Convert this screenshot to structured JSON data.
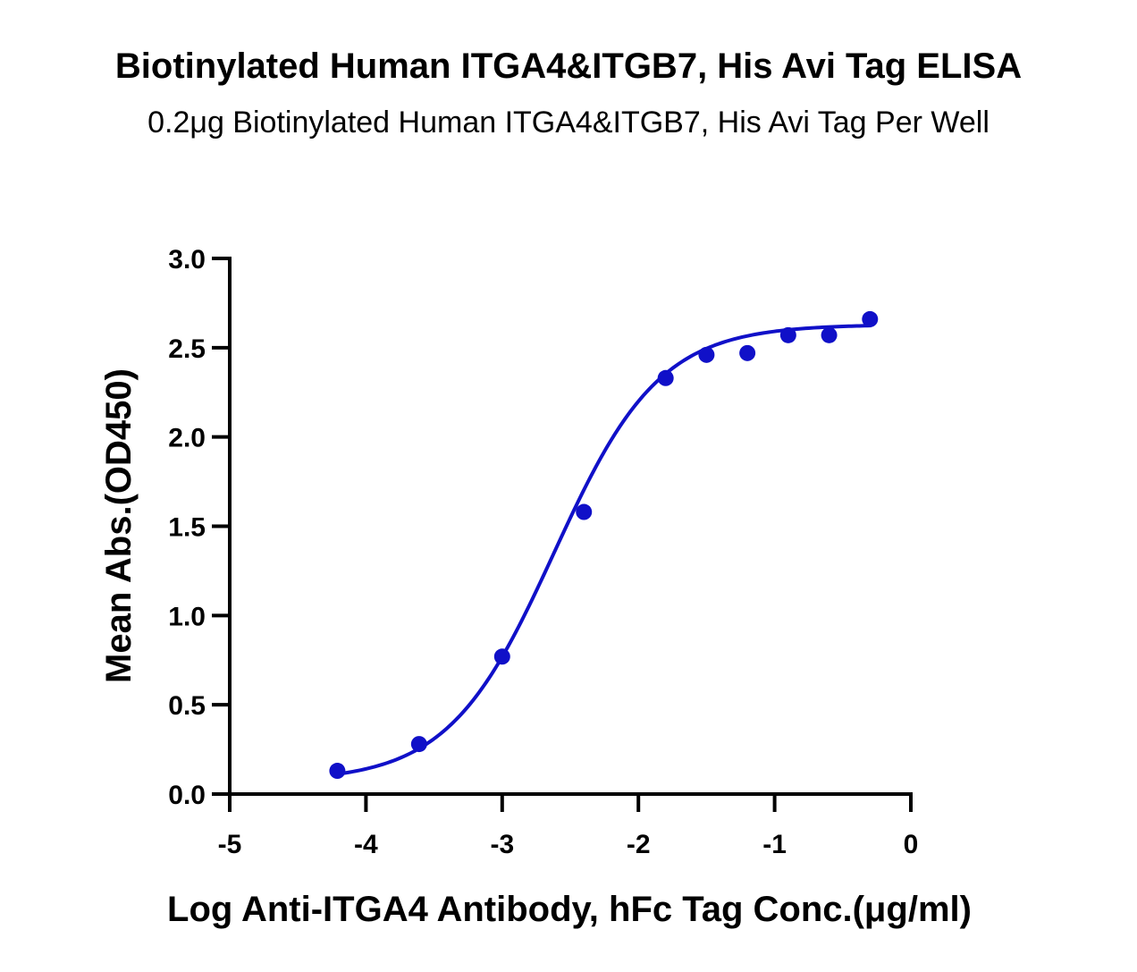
{
  "title": "Biotinylated Human ITGA4&ITGB7, His Avi Tag ELISA",
  "subtitle": "0.2μg Biotinylated Human ITGA4&ITGB7, His Avi Tag Per Well",
  "chart_data": {
    "type": "scatter",
    "title": "Biotinylated Human ITGA4&ITGB7, His Avi Tag ELISA",
    "subtitle": "0.2μg Biotinylated Human ITGA4&ITGB7, His Avi Tag Per Well",
    "xlabel": "Log Anti-ITGA4 Antibody, hFc Tag Conc.(μg/ml)",
    "ylabel": "Mean Abs.(OD450)",
    "xlim": [
      -5,
      0
    ],
    "ylim": [
      0,
      3.0
    ],
    "x_ticks": [
      "-5",
      "-4",
      "-3",
      "-2",
      "-1",
      "0"
    ],
    "y_ticks": [
      "0.0",
      "0.5",
      "1.0",
      "1.5",
      "2.0",
      "2.5",
      "3.0"
    ],
    "grid": false,
    "color": "#1010c8",
    "series": [
      {
        "x": [
          -4.21,
          -3.61,
          -3.0,
          -2.4,
          -1.8,
          -1.5,
          -1.2,
          -0.9,
          -0.6,
          -0.3
        ],
        "y": [
          0.13,
          0.28,
          0.77,
          1.58,
          2.33,
          2.46,
          2.47,
          2.57,
          2.57,
          2.66
        ]
      }
    ],
    "fit_curve": {
      "model": "4PL",
      "bottom": 0.07,
      "top": 2.63,
      "log_ec50": -2.62,
      "hill_slope": 1.12,
      "x_range": [
        -4.21,
        -0.3
      ]
    }
  }
}
